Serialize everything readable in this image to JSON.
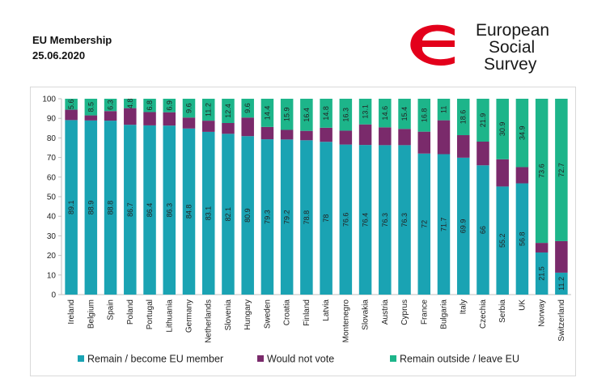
{
  "header": {
    "title": "EU Membership",
    "date": "25.06.2020"
  },
  "logo": {
    "line1": "European",
    "line2": "Social",
    "line3": "Survey",
    "brand_color": "#e3001b"
  },
  "colors": {
    "remain": "#1aa3b3",
    "not_vote": "#7a2a6b",
    "leave": "#1db58a"
  },
  "chart_data": {
    "type": "bar",
    "stacked": true,
    "orientation": "vertical",
    "categories": [
      "Ireland",
      "Belgium",
      "Spain",
      "Poland",
      "Portugal",
      "Lithuania",
      "Germany",
      "Netherlands",
      "Slovenia",
      "Hungary",
      "Sweden",
      "Croatia",
      "Finland",
      "Latvia",
      "Montenegro",
      "Slovakia",
      "Austria",
      "Cyprus",
      "France",
      "Bulgaria",
      "Italy",
      "Czechia",
      "Serbia",
      "UK",
      "Norway",
      "Switzerland"
    ],
    "series": [
      {
        "name": "Remain / become EU member",
        "color": "#1aa3b3",
        "values": [
          89.1,
          88.9,
          88.8,
          86.7,
          86.4,
          86.3,
          84.8,
          83.1,
          82.1,
          80.9,
          79.3,
          79.2,
          78.8,
          78,
          76.6,
          76.4,
          76.3,
          76.3,
          72,
          71.7,
          69.9,
          66,
          55.2,
          56.8,
          21.5,
          11.2
        ],
        "labels": [
          "89.1",
          "88.9",
          "88.8",
          "86.7",
          "86.4",
          "86.3",
          "84.8",
          "83.1",
          "82.1",
          "80.9",
          "79.3",
          "79.2",
          "78.8",
          "78",
          "76.6",
          "76.4",
          "76.3",
          "76.3",
          "72",
          "71.7",
          "69.9",
          "66",
          "55.2",
          "56.8",
          "21.5",
          "11.2"
        ]
      },
      {
        "name": "Would not vote",
        "color": "#7a2a6b",
        "values": [
          5.3,
          2.6,
          4.9,
          8.5,
          6.8,
          6.8,
          5.6,
          5.7,
          5.5,
          9.5,
          6.3,
          4.9,
          4.8,
          7.2,
          7.1,
          10.5,
          9.1,
          8.3,
          11.2,
          17.3,
          11.5,
          12.1,
          13.9,
          8.3,
          4.9,
          16.1
        ],
        "labels": []
      },
      {
        "name": "Remain outside / leave EU",
        "color": "#1db58a",
        "values": [
          5.6,
          8.5,
          6.3,
          4.8,
          6.8,
          6.9,
          9.6,
          11.2,
          12.4,
          9.6,
          14.4,
          15.9,
          16.4,
          14.8,
          16.3,
          13.1,
          14.6,
          15.4,
          16.8,
          11,
          18.6,
          21.9,
          30.9,
          34.9,
          73.6,
          72.7
        ],
        "labels": [
          "5.6",
          "8.5",
          "6.3",
          "4.8",
          "6.8",
          "6.9",
          "9.6",
          "11.2",
          "12.4",
          "9.6",
          "14.4",
          "15.9",
          "16.4",
          "14.8",
          "16.3",
          "13.1",
          "14.6",
          "15.4",
          "16.8",
          "11",
          "18.6",
          "21.9",
          "30.9",
          "34.9",
          "73.6",
          "72.7"
        ]
      }
    ],
    "y_ticks": [
      "0",
      "10",
      "20",
      "30",
      "40",
      "50",
      "60",
      "70",
      "80",
      "90",
      "100"
    ],
    "ylim": [
      0,
      100
    ],
    "legend_position": "bottom"
  }
}
